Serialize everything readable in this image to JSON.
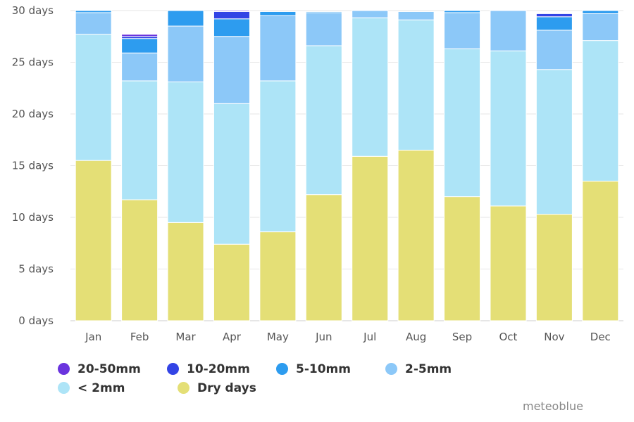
{
  "chart_data": {
    "type": "bar",
    "stacked": true,
    "categories": [
      "Jan",
      "Feb",
      "Mar",
      "Apr",
      "May",
      "Jun",
      "Jul",
      "Aug",
      "Sep",
      "Oct",
      "Nov",
      "Dec"
    ],
    "yticks": [
      "0 days",
      "5 days",
      "10 days",
      "15 days",
      "20 days",
      "25 days",
      "30 days"
    ],
    "ylim": [
      0,
      30
    ],
    "grid": true,
    "legend_position": "bottom",
    "series": [
      {
        "name": "Dry days",
        "color": "#e4df76",
        "values": [
          15.5,
          11.7,
          9.5,
          7.4,
          8.6,
          12.2,
          15.9,
          16.5,
          12.0,
          11.1,
          10.3,
          13.5
        ]
      },
      {
        "name": "< 2mm",
        "color": "#ade4f7",
        "values": [
          12.2,
          11.5,
          13.6,
          13.6,
          14.6,
          14.4,
          13.4,
          12.6,
          14.3,
          15.0,
          14.0,
          13.6
        ]
      },
      {
        "name": "2-5mm",
        "color": "#8cc8f8",
        "values": [
          2.1,
          2.7,
          5.4,
          6.5,
          6.3,
          3.2,
          0.7,
          0.8,
          3.5,
          3.9,
          3.8,
          2.6
        ]
      },
      {
        "name": "5-10mm",
        "color": "#2d9cef",
        "values": [
          0.2,
          1.4,
          1.5,
          1.7,
          0.4,
          0.1,
          0.0,
          0.0,
          0.2,
          0.0,
          1.3,
          0.3
        ]
      },
      {
        "name": "10-20mm",
        "color": "#3344e5",
        "values": [
          0.0,
          0.2,
          0.0,
          0.7,
          0.0,
          0.0,
          0.0,
          0.0,
          0.0,
          0.0,
          0.3,
          0.0
        ]
      },
      {
        "name": "20-50mm",
        "color": "#6a34de",
        "values": [
          0.0,
          0.2,
          0.0,
          0.1,
          0.0,
          0.0,
          0.0,
          0.0,
          0.0,
          0.0,
          0.0,
          0.0
        ]
      }
    ],
    "legend": [
      {
        "label": "20-50mm",
        "color": "#6a34de"
      },
      {
        "label": "10-20mm",
        "color": "#3344e5"
      },
      {
        "label": "5-10mm",
        "color": "#2d9cef"
      },
      {
        "label": "2-5mm",
        "color": "#8cc8f8"
      },
      {
        "label": "< 2mm",
        "color": "#ade4f7"
      },
      {
        "label": "Dry days",
        "color": "#e4df76"
      }
    ]
  },
  "credit": "meteoblue"
}
